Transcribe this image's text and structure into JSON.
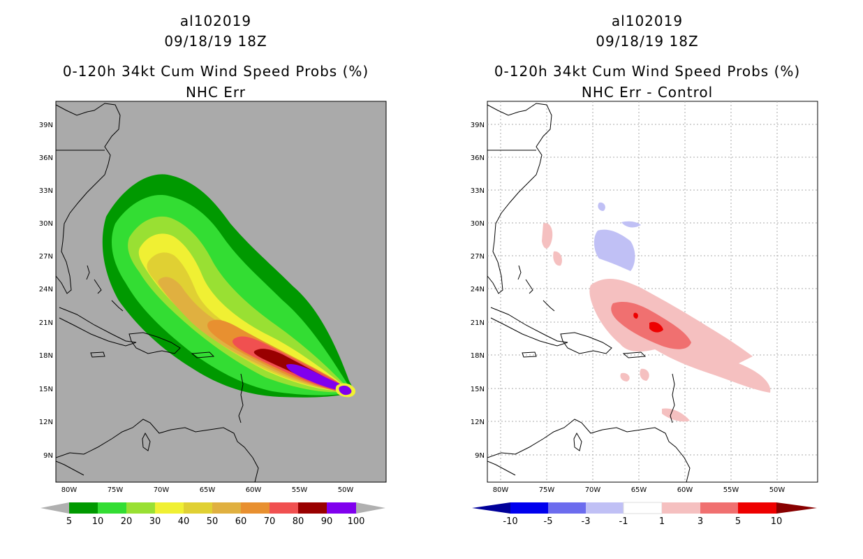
{
  "left": {
    "storm_id": "al102019",
    "datetime": "09/18/19 18Z",
    "title": "0-120h 34kt Cum Wind Speed Probs (%)",
    "subtitle": "NHC Err",
    "lon_labels": [
      "80W",
      "75W",
      "70W",
      "65W",
      "60W",
      "55W",
      "50W"
    ],
    "lat_labels": [
      "39N",
      "36N",
      "33N",
      "30N",
      "27N",
      "24N",
      "21N",
      "18N",
      "15N",
      "12N",
      "9N"
    ],
    "colorbar": {
      "labels": [
        "5",
        "10",
        "20",
        "30",
        "40",
        "50",
        "60",
        "70",
        "80",
        "90",
        "100"
      ],
      "colors": [
        "#009900",
        "#33dd33",
        "#99e033",
        "#f0f033",
        "#e0d033",
        "#e0b040",
        "#e89030",
        "#f05050",
        "#990000",
        "#8000ee"
      ],
      "end_color": "#b0b0b0"
    }
  },
  "right": {
    "storm_id": "al102019",
    "datetime": "09/18/19 18Z",
    "title": "0-120h 34kt Cum Wind Speed Probs (%)",
    "subtitle": "NHC Err - Control",
    "lon_labels": [
      "80W",
      "75W",
      "70W",
      "65W",
      "60W",
      "55W",
      "50W"
    ],
    "lat_labels": [
      "39N",
      "36N",
      "33N",
      "30N",
      "27N",
      "24N",
      "21N",
      "18N",
      "15N",
      "12N",
      "9N"
    ],
    "colorbar": {
      "labels": [
        "-10",
        "-5",
        "-3",
        "-1",
        "1",
        "3",
        "5",
        "10"
      ],
      "colors": [
        "#0000ee",
        "#6c6cee",
        "#c0c0f5",
        "#ffffff",
        "#f5c0c0",
        "#f07070",
        "#ee0000"
      ],
      "end_low": "#000099",
      "end_high": "#880000"
    }
  },
  "colors": {
    "ocean_gray": "#aaaaaa",
    "prob_5": "#009900",
    "prob_10": "#33dd33",
    "prob_20": "#99e033",
    "prob_30": "#f0f033",
    "prob_40": "#e0d033",
    "prob_50": "#e0b040",
    "prob_60": "#e89030",
    "prob_70": "#f05050",
    "prob_80": "#990000",
    "prob_90": "#8000ee",
    "diff_1": "#f5c0c0",
    "diff_3": "#f07070",
    "diff_5": "#ee0000",
    "diff_neg1": "#c0c0f5"
  }
}
